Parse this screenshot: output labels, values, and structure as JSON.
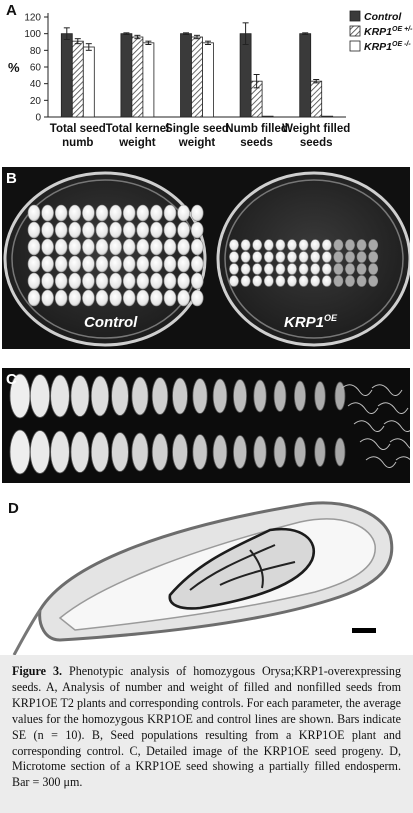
{
  "panels": {
    "a": "A",
    "b": "B",
    "c": "C",
    "d": "D"
  },
  "chart_data": {
    "type": "bar",
    "ylabel": "%",
    "ylim": [
      0,
      120
    ],
    "yticks": [
      0,
      20,
      40,
      60,
      80,
      100,
      120
    ],
    "categories": [
      "Total seed numb",
      "Total kernel weight",
      "Single seed weight",
      "Numb filled seeds",
      "Weight filled seeds"
    ],
    "category_lines": [
      [
        "Total seed",
        "numb"
      ],
      [
        "Total kernel",
        "weight"
      ],
      [
        "Single seed",
        "weight"
      ],
      [
        "Numb filled",
        "seeds"
      ],
      [
        "Weight filled",
        "seeds"
      ]
    ],
    "series": [
      {
        "name": "Control",
        "values": [
          100,
          100,
          100,
          100,
          100
        ],
        "errors": [
          7,
          1,
          1,
          13,
          1
        ],
        "color": "#3a3a3a"
      },
      {
        "name": "KRP1OE +/-",
        "values": [
          91,
          96,
          96,
          43,
          43
        ],
        "errors": [
          3,
          2,
          2,
          8,
          2
        ],
        "color": "hatch"
      },
      {
        "name": "KRP1OE -/-",
        "values": [
          84,
          89,
          89,
          1,
          1
        ],
        "errors": [
          4,
          2,
          2,
          0,
          0
        ],
        "color": "#ffffff"
      }
    ],
    "legend": {
      "position": "top-right",
      "entries": [
        {
          "base": "Control",
          "sup": ""
        },
        {
          "base": "KRP1",
          "sup": "OE +/-"
        },
        {
          "base": "KRP1",
          "sup": "OE -/-"
        }
      ]
    }
  },
  "photos": {
    "b_labels": {
      "control": "Control",
      "krp_base": "KRP1",
      "krp_sup": "OE"
    }
  },
  "caption": {
    "title": "Figure 3.",
    "text": "Phenotypic analysis of homozygous Orysa;KRP1-overexpressing seeds. A, Analysis of number and weight of filled and nonfilled seeds from KRP1OE T2 plants and corresponding controls. For each parameter, the average values for the homozygous KRP1OE and control lines are shown. Bars indicate SE (n = 10). B, Seed populations resulting from a KRP1OE plant and corresponding control. C, Detailed image of the KRP1OE seed progeny. D, Microtome section of a KRP1OE seed showing a partially filled endosperm. Bar = 300 μm."
  }
}
